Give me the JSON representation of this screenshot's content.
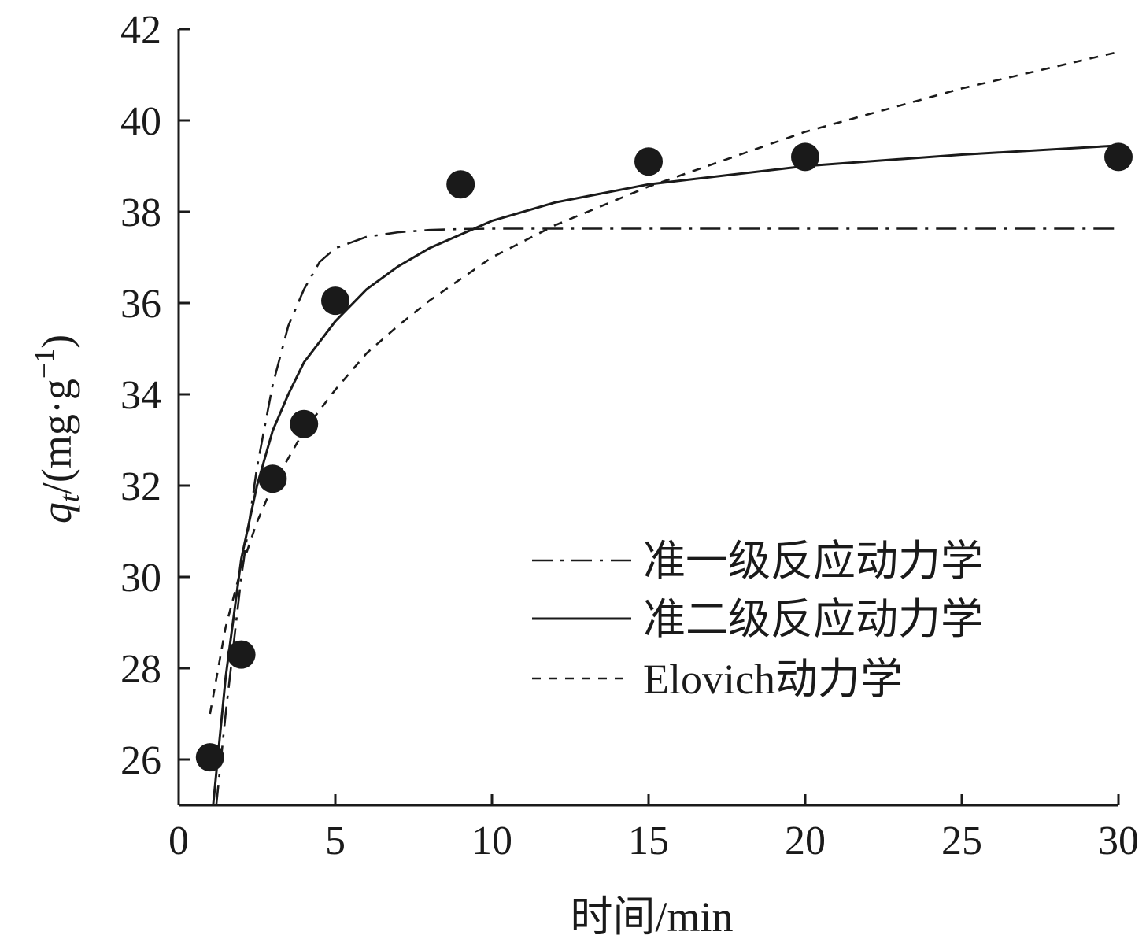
{
  "chart_data": {
    "type": "scatter",
    "xlabel": "时间/min",
    "ylabel": {
      "main": "q",
      "subscript": "t",
      "unit_prefix": "/(mg·g",
      "superscript": "−1",
      "unit_suffix": ")"
    },
    "xlim": [
      0,
      30
    ],
    "ylim": [
      25,
      42
    ],
    "xticks": [
      0,
      5,
      10,
      15,
      20,
      25,
      30
    ],
    "yticks": [
      26,
      28,
      30,
      32,
      34,
      36,
      38,
      40,
      42
    ],
    "grid": false,
    "legend_position": "lower-right",
    "points": {
      "x": [
        1,
        2,
        3,
        4,
        5,
        9,
        15,
        20,
        30
      ],
      "y": [
        26.05,
        28.3,
        32.15,
        33.35,
        36.05,
        38.6,
        39.1,
        39.2,
        39.2
      ]
    },
    "series": [
      {
        "name": "准一级反应动力学",
        "style": "dashdot",
        "x": [
          1.2,
          1.5,
          2,
          2.5,
          3,
          3.5,
          4,
          4.5,
          5,
          6,
          7,
          8,
          9,
          10,
          12,
          15,
          20,
          25,
          30
        ],
        "y": [
          25.0,
          27.0,
          30.0,
          32.4,
          34.2,
          35.5,
          36.3,
          36.9,
          37.2,
          37.45,
          37.55,
          37.6,
          37.62,
          37.63,
          37.63,
          37.63,
          37.63,
          37.63,
          37.63
        ]
      },
      {
        "name": "准二级反应动力学",
        "style": "solid",
        "x": [
          1.1,
          1.5,
          2,
          2.5,
          3,
          3.5,
          4,
          5,
          6,
          7,
          8,
          9,
          10,
          12,
          15,
          20,
          25,
          30
        ],
        "y": [
          25.0,
          27.8,
          30.4,
          32.0,
          33.2,
          34.0,
          34.7,
          35.6,
          36.3,
          36.8,
          37.2,
          37.5,
          37.8,
          38.2,
          38.6,
          39.0,
          39.25,
          39.45
        ]
      },
      {
        "name": "Elovich动力学",
        "style": "dashed",
        "x": [
          1,
          1.5,
          2,
          2.5,
          3,
          4,
          5,
          6,
          7,
          8,
          10,
          12,
          15,
          20,
          25,
          30
        ],
        "y": [
          27.0,
          28.9,
          30.2,
          31.2,
          32.0,
          33.2,
          34.1,
          34.9,
          35.5,
          36.05,
          37.0,
          37.7,
          38.55,
          39.75,
          40.7,
          41.5
        ]
      }
    ]
  }
}
